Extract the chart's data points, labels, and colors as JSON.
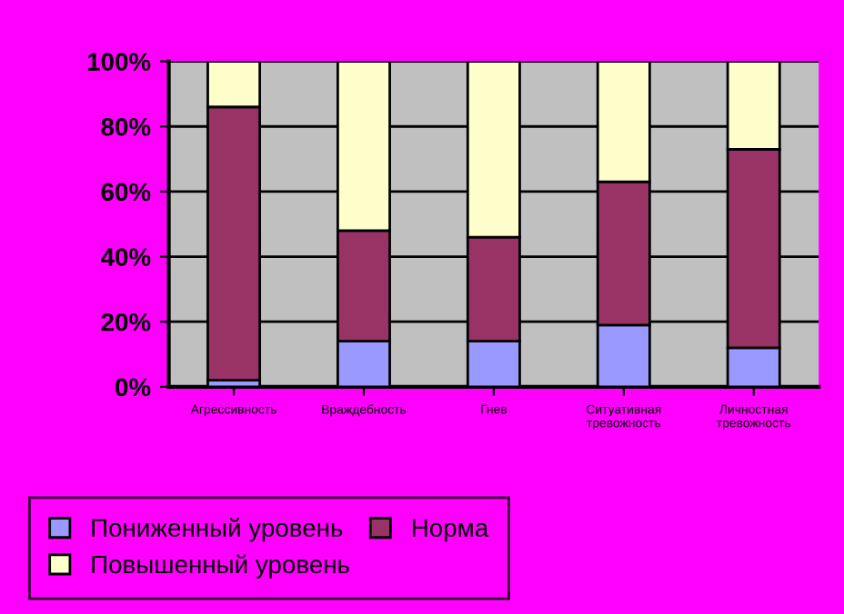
{
  "chart_data": {
    "type": "bar",
    "stacked": true,
    "categories": [
      "Агрессивность",
      "Враждебность",
      "Гнев",
      "Ситуативная\nтревожность",
      "Личностная\nтревожность"
    ],
    "series": [
      {
        "name": "Пониженный уровень",
        "color": "#9999ff",
        "values": [
          2,
          14,
          14,
          19,
          12
        ]
      },
      {
        "name": "Норма",
        "color": "#993366",
        "values": [
          84,
          34,
          32,
          44,
          61
        ]
      },
      {
        "name": "Повышенный уровень",
        "color": "#ffffcc",
        "values": [
          14,
          52,
          54,
          37,
          27
        ]
      }
    ],
    "ylim": [
      0,
      100
    ],
    "yticks": [
      {
        "value": 0,
        "label": "0%"
      },
      {
        "value": 20,
        "label": "20%"
      },
      {
        "value": 40,
        "label": "40%"
      },
      {
        "value": 60,
        "label": "60%"
      },
      {
        "value": 80,
        "label": "80%"
      },
      {
        "value": 100,
        "label": "100%"
      }
    ],
    "grid": "y",
    "legend": "bottom"
  }
}
